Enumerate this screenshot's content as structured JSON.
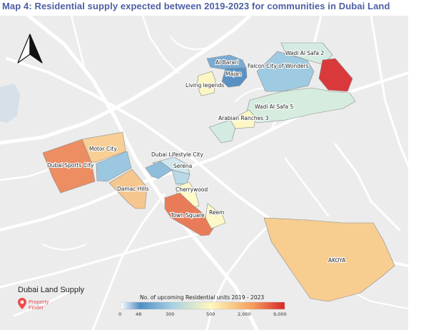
{
  "title": "Map 4: Residential supply expected between 2019-2023 for communities in Dubai Land",
  "map_label": "Dubai Land Supply",
  "brand": {
    "name_line1": "Property",
    "name_line2": "Finder",
    "logo_color": "#ee4a4a"
  },
  "legend": {
    "title": "No. of upcoming Residential units 2019 - 2023",
    "ticks": [
      "0",
      "48",
      "300",
      "500",
      "2,000",
      "9,000"
    ],
    "stops": [
      "#ffffff",
      "#4f8fc4",
      "#a9d2e3",
      "#fff8bd",
      "#f6a05c",
      "#d7282a"
    ]
  },
  "communities": [
    {
      "name": "Dubai Sports City",
      "color": "#ec8d62"
    },
    {
      "name": "Motor City",
      "color": "#f8cf95"
    },
    {
      "name": "Damac Hills",
      "color": "#f5c78e"
    },
    {
      "name": "Dubai Lifestyle City",
      "color": "#cfe7ed"
    },
    {
      "name": "Serena",
      "color": "#8fbedc"
    },
    {
      "name": "Cherrywood",
      "color": "#fefac8"
    },
    {
      "name": "Town Square",
      "color": "#e97c58"
    },
    {
      "name": "Reem",
      "color": "#fdf8c8"
    },
    {
      "name": "Al Barari",
      "color": "#7aabd3"
    },
    {
      "name": "Majan",
      "color": "#5a91c5"
    },
    {
      "name": "Living legends",
      "color": "#fbf6c2"
    },
    {
      "name": "Falcon City of Wonders",
      "color": "#9fcbe2"
    },
    {
      "name": "Wadi Al Safa 2",
      "color": "#d4ebe2"
    },
    {
      "name": "Wadi Al Safa 5",
      "color": "#d6ecdf"
    },
    {
      "name": "Arabian Ranches 3",
      "color": "#fdf7c4"
    },
    {
      "name": "AKOYA",
      "color": "#f8cd90"
    },
    {
      "name": "",
      "color": "#d9393b"
    }
  ],
  "north_arrow": "north-arrow-icon"
}
